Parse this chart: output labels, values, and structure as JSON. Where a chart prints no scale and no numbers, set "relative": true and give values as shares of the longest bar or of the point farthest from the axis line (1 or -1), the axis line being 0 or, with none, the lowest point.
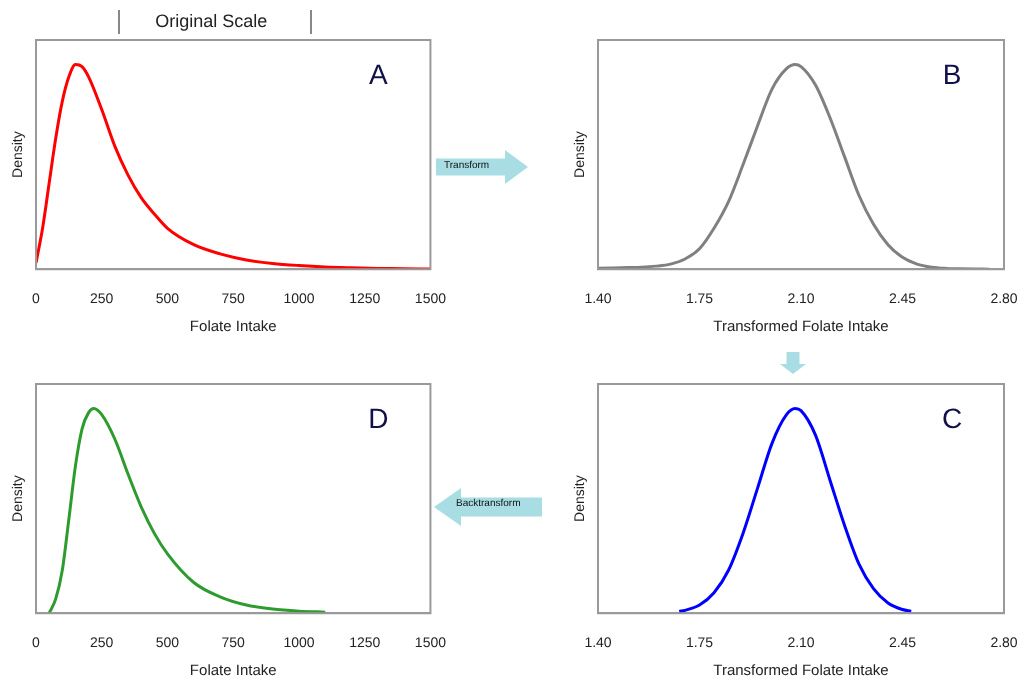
{
  "chart_data": [
    {
      "type": "line",
      "title": "Original Scale",
      "xlabel": "Folate Intake",
      "ylabel": "Density",
      "relative": true,
      "marker": "none",
      "xlim": [
        0,
        1500
      ],
      "xticks": [
        0,
        250,
        500,
        750,
        1000,
        1250,
        1500
      ],
      "annotations": [
        "A",
        "Transform"
      ],
      "series": [
        {
          "color": "#ff0000",
          "x": [
            0,
            25,
            50,
            75,
            100,
            125,
            150,
            175,
            200,
            250,
            300,
            350,
            400,
            450,
            500,
            600,
            700,
            800,
            900,
            1000,
            1100,
            1200,
            1300,
            1400,
            1500
          ],
          "values": [
            0.03,
            0.2,
            0.42,
            0.64,
            0.82,
            0.94,
            1,
            0.99,
            0.94,
            0.78,
            0.6,
            0.46,
            0.35,
            0.27,
            0.2,
            0.12,
            0.075,
            0.045,
            0.028,
            0.018,
            0.011,
            0.007,
            0.004,
            0.002,
            0.001
          ]
        }
      ]
    },
    {
      "type": "line",
      "xlabel": "Transformed Folate Intake",
      "ylabel": "Density",
      "relative": true,
      "marker": "none",
      "xlim": [
        1.4,
        2.8
      ],
      "xticks": [
        {
          "value": 1.4,
          "label": "1.40"
        },
        1.75,
        {
          "value": 2.1,
          "label": "2.10"
        },
        2.45,
        {
          "value": 2.8,
          "label": "2.80"
        }
      ],
      "annotations": [
        "B"
      ],
      "series": [
        {
          "color": "#808080",
          "x": [
            1.4,
            1.45,
            1.5,
            1.55,
            1.6,
            1.65,
            1.7,
            1.75,
            1.8,
            1.85,
            1.9,
            1.95,
            2.0,
            2.05,
            2.08,
            2.1,
            2.15,
            2.2,
            2.25,
            2.3,
            2.35,
            2.4,
            2.45,
            2.5,
            2.55,
            2.6,
            2.65,
            2.7,
            2.75
          ],
          "values": [
            0.005,
            0.006,
            0.008,
            0.01,
            0.015,
            0.025,
            0.05,
            0.1,
            0.2,
            0.33,
            0.51,
            0.7,
            0.88,
            0.98,
            1,
            0.99,
            0.9,
            0.74,
            0.55,
            0.36,
            0.22,
            0.12,
            0.058,
            0.025,
            0.01,
            0.004,
            0.002,
            0.001,
            0
          ]
        }
      ]
    },
    {
      "type": "line",
      "xlabel": "Folate Intake",
      "ylabel": "Density",
      "relative": true,
      "marker": "none",
      "xlim": [
        0,
        1500
      ],
      "xticks": [
        0,
        250,
        500,
        750,
        1000,
        1250,
        1500
      ],
      "annotations": [
        "D",
        "Backtransform"
      ],
      "series": [
        {
          "color": "#2e9b2e",
          "x": [
            50,
            75,
            100,
            125,
            150,
            175,
            200,
            220,
            250,
            300,
            350,
            400,
            450,
            500,
            600,
            700,
            800,
            900,
            1000,
            1100
          ],
          "values": [
            0,
            0.07,
            0.21,
            0.46,
            0.72,
            0.9,
            0.98,
            1,
            0.97,
            0.85,
            0.68,
            0.52,
            0.39,
            0.29,
            0.15,
            0.08,
            0.04,
            0.02,
            0.01,
            0.005
          ]
        }
      ]
    },
    {
      "type": "line",
      "xlabel": "Transformed Folate Intake",
      "ylabel": "Density",
      "relative": true,
      "marker": "none",
      "xlim": [
        1.4,
        2.8
      ],
      "xticks": [
        {
          "value": 1.4,
          "label": "1.40"
        },
        1.75,
        {
          "value": 2.1,
          "label": "2.10"
        },
        2.45,
        {
          "value": 2.8,
          "label": "2.80"
        }
      ],
      "annotations": [
        "C"
      ],
      "series": [
        {
          "color": "#0000ff",
          "x": [
            1.68,
            1.7,
            1.75,
            1.8,
            1.85,
            1.9,
            1.95,
            2.0,
            2.05,
            2.08,
            2.1,
            2.15,
            2.2,
            2.25,
            2.3,
            2.35,
            2.4,
            2.45,
            2.48
          ],
          "values": [
            0.009,
            0.014,
            0.04,
            0.1,
            0.21,
            0.39,
            0.61,
            0.83,
            0.97,
            1,
            0.99,
            0.87,
            0.65,
            0.43,
            0.24,
            0.12,
            0.05,
            0.018,
            0.009
          ]
        }
      ]
    }
  ]
}
